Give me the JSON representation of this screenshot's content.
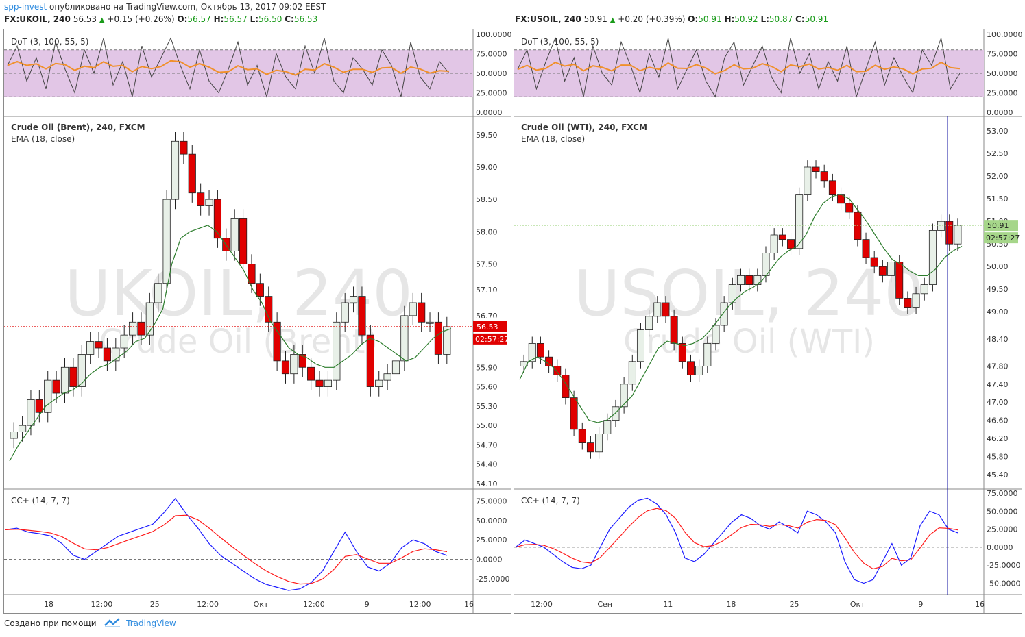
{
  "header": {
    "user": "spp-invest",
    "published": "опубликовано на TradingView.com, Октябрь 13, 2017 09:02 EEST"
  },
  "footer": {
    "label": "Создано при помощи",
    "brand": "TradingView"
  },
  "colors": {
    "up_candle": "#e8f0e8",
    "down_candle": "#e00000",
    "ema": "#2d7d2d",
    "dot_line": "#444444",
    "dot_signal": "#f0902a",
    "dot_band": "#e2c6e6",
    "cc_fast": "#1a1aff",
    "cc_slow": "#ff1a1a",
    "price_label_red": "#e00000",
    "price_label_green": "#a6d68a",
    "crosshair": "#1010a0"
  },
  "charts": [
    {
      "id": "ukoil",
      "symbol": "FX:UKOIL, 240",
      "last": "56.53",
      "change": "+0.15 (+0.26%)",
      "O": "56.57",
      "H": "56.57",
      "L": "56.50",
      "C": "56.53",
      "dot_title": "DoT (3, 100, 55, 5)",
      "dot_axis": [
        "100.0000",
        "75.0000",
        "50.0000",
        "25.0000",
        "0.0000"
      ],
      "main_title": "Crude Oil (Brent), 240, FXCM",
      "ema_title": "EMA (18, close)",
      "watermark_big": "UKOIL, 240",
      "watermark_small": "Crude Oil (Brent)",
      "price_axis": [
        "59.50",
        "59.00",
        "58.50",
        "58.00",
        "57.50",
        "57.10",
        "56.70",
        "56.30",
        "55.90",
        "55.60",
        "55.30",
        "55.00",
        "54.70",
        "54.40",
        "54.10"
      ],
      "price_label": "56.53",
      "timer_label": "02:57:27",
      "cc_title": "CC+ (14, 7, 7)",
      "cc_axis": [
        "75.0000",
        "50.0000",
        "25.0000",
        "0.0000",
        "-25.0000"
      ],
      "time_axis": [
        "18",
        "12:00",
        "25",
        "12:00",
        "Окт",
        "12:00",
        "9",
        "12:00",
        "16"
      ]
    },
    {
      "id": "usoil",
      "symbol": "FX:USOIL, 240",
      "last": "50.91",
      "change": "+0.20 (+0.39%)",
      "O": "50.91",
      "H": "50.92",
      "L": "50.87",
      "C": "50.91",
      "dot_title": "DoT (3, 100, 55, 5)",
      "dot_axis": [
        "100.0000",
        "75.0000",
        "50.0000",
        "25.0000",
        "0.0000"
      ],
      "main_title": "Crude Oil (WTI), 240, FXCM",
      "ema_title": "EMA (18, close)",
      "watermark_big": "USOIL, 240",
      "watermark_small": "Crude Oil (WTI)",
      "price_axis": [
        "53.00",
        "52.50",
        "52.00",
        "51.50",
        "51.00",
        "50.50",
        "50.00",
        "49.50",
        "49.00",
        "48.40",
        "47.80",
        "47.40",
        "47.00",
        "46.60",
        "46.20",
        "45.80",
        "45.40"
      ],
      "price_label": "50.91",
      "timer_label": "02:57:27",
      "cc_title": "CC+ (14, 7, 7)",
      "cc_axis": [
        "75.0000",
        "50.0000",
        "25.0000",
        "0.0000",
        "-25.0000",
        "-50.0000"
      ],
      "time_axis": [
        "12:00",
        "Сен",
        "11",
        "18",
        "25",
        "Окт",
        "9",
        "16"
      ]
    }
  ],
  "chart_data": [
    {
      "type": "candlestick",
      "title": "Crude Oil (Brent), 240, FXCM",
      "series": [
        {
          "name": "Crude Oil (Brent)",
          "close": [
            54.9,
            55.0,
            55.4,
            55.2,
            55.7,
            55.5,
            55.9,
            55.6,
            56.1,
            56.3,
            56.2,
            56.0,
            56.2,
            56.4,
            56.6,
            56.4,
            56.9,
            57.2,
            58.5,
            59.4,
            59.2,
            58.6,
            58.4,
            58.5,
            57.9,
            57.7,
            58.2,
            57.5,
            57.2,
            57.0,
            56.6,
            56.0,
            55.8,
            56.1,
            55.9,
            55.7,
            55.6,
            55.7,
            56.6,
            56.9,
            57.0,
            56.4,
            55.6,
            55.7,
            55.8,
            56.0,
            56.7,
            56.9,
            56.6,
            56.6,
            56.1,
            56.53
          ]
        },
        {
          "name": "EMA (18, close)",
          "values": [
            54.45,
            54.7,
            54.9,
            55.1,
            55.3,
            55.4,
            55.5,
            55.55,
            55.65,
            55.8,
            55.9,
            55.95,
            56.05,
            56.15,
            56.3,
            56.35,
            56.55,
            56.8,
            57.5,
            57.9,
            58.0,
            58.05,
            58.1,
            58.0,
            57.8,
            57.6,
            57.4,
            57.1,
            56.9,
            56.6,
            56.4,
            56.2,
            56.1,
            56.05,
            55.95,
            55.9,
            55.9,
            56.0,
            56.1,
            56.25,
            56.35,
            56.3,
            56.2,
            56.1,
            56.0,
            56.05,
            56.2,
            56.35,
            56.45,
            56.5
          ]
        },
        {
          "name": "DoT",
          "values": [
            60,
            85,
            40,
            70,
            30,
            90,
            55,
            25,
            80,
            50,
            95,
            35,
            65,
            20,
            85,
            45,
            70,
            95,
            60,
            30,
            80,
            40,
            25,
            55,
            90,
            35,
            60,
            20,
            75,
            45,
            30,
            85,
            50,
            95,
            40,
            25,
            70,
            55,
            35,
            80,
            60,
            20,
            90,
            45,
            30,
            65,
            50
          ]
        },
        {
          "name": "CC+ (14, 7, 7)",
          "values": [
            38,
            40,
            35,
            33,
            30,
            20,
            5,
            0,
            10,
            20,
            30,
            35,
            40,
            45,
            60,
            78,
            58,
            40,
            20,
            5,
            -5,
            -15,
            -25,
            -32,
            -36,
            -40,
            -38,
            -30,
            -15,
            10,
            35,
            10,
            -10,
            -15,
            -5,
            15,
            25,
            20,
            10,
            5
          ]
        }
      ],
      "ylim": [
        54.1,
        59.7
      ],
      "xlabel": "",
      "ylabel": ""
    },
    {
      "type": "candlestick",
      "title": "Crude Oil (WTI), 240, FXCM",
      "series": [
        {
          "name": "Crude Oil (WTI)",
          "close": [
            47.9,
            48.3,
            48.0,
            47.8,
            47.6,
            47.1,
            46.4,
            46.1,
            45.9,
            46.3,
            46.6,
            46.9,
            47.4,
            47.9,
            48.6,
            48.9,
            49.2,
            48.9,
            48.3,
            47.9,
            47.6,
            47.8,
            48.3,
            48.7,
            49.2,
            49.6,
            49.8,
            49.6,
            49.8,
            50.3,
            50.7,
            50.6,
            50.4,
            51.6,
            52.2,
            52.1,
            51.9,
            51.6,
            51.4,
            51.2,
            50.6,
            50.2,
            50.0,
            49.8,
            50.1,
            49.3,
            49.1,
            49.4,
            49.6,
            50.8,
            51.0,
            50.5,
            50.91
          ]
        },
        {
          "name": "EMA (18, close)",
          "values": [
            47.5,
            47.9,
            48.0,
            47.9,
            47.75,
            47.5,
            47.2,
            46.9,
            46.6,
            46.55,
            46.6,
            46.75,
            46.95,
            47.15,
            47.5,
            47.85,
            48.2,
            48.35,
            48.3,
            48.25,
            48.3,
            48.4,
            48.6,
            48.85,
            49.1,
            49.3,
            49.45,
            49.55,
            49.7,
            49.95,
            50.2,
            50.35,
            50.45,
            50.7,
            51.1,
            51.4,
            51.55,
            51.6,
            51.5,
            51.25,
            51.0,
            50.7,
            50.4,
            50.15,
            50.05,
            49.9,
            49.8,
            49.8,
            49.95,
            50.2,
            50.35,
            50.45
          ]
        },
        {
          "name": "DoT",
          "values": [
            55,
            80,
            30,
            65,
            95,
            40,
            70,
            20,
            85,
            50,
            35,
            90,
            60,
            25,
            75,
            45,
            95,
            30,
            55,
            80,
            40,
            20,
            70,
            90,
            35,
            60,
            85,
            45,
            25,
            95,
            50,
            75,
            30,
            65,
            40,
            85,
            20,
            55,
            90,
            35,
            70,
            45,
            25,
            80,
            60,
            95,
            30,
            50
          ]
        },
        {
          "name": "CC+ (14, 7, 7)",
          "values": [
            0,
            10,
            5,
            0,
            -10,
            -20,
            -28,
            -30,
            -25,
            0,
            25,
            40,
            55,
            65,
            68,
            60,
            45,
            20,
            -15,
            -20,
            -10,
            5,
            20,
            35,
            45,
            40,
            30,
            25,
            35,
            28,
            20,
            50,
            45,
            35,
            20,
            -20,
            -45,
            -50,
            -45,
            -20,
            5,
            -25,
            -15,
            30,
            50,
            45,
            25,
            20
          ]
        }
      ],
      "ylim": [
        45.2,
        53.2
      ],
      "xlabel": "",
      "ylabel": ""
    }
  ]
}
